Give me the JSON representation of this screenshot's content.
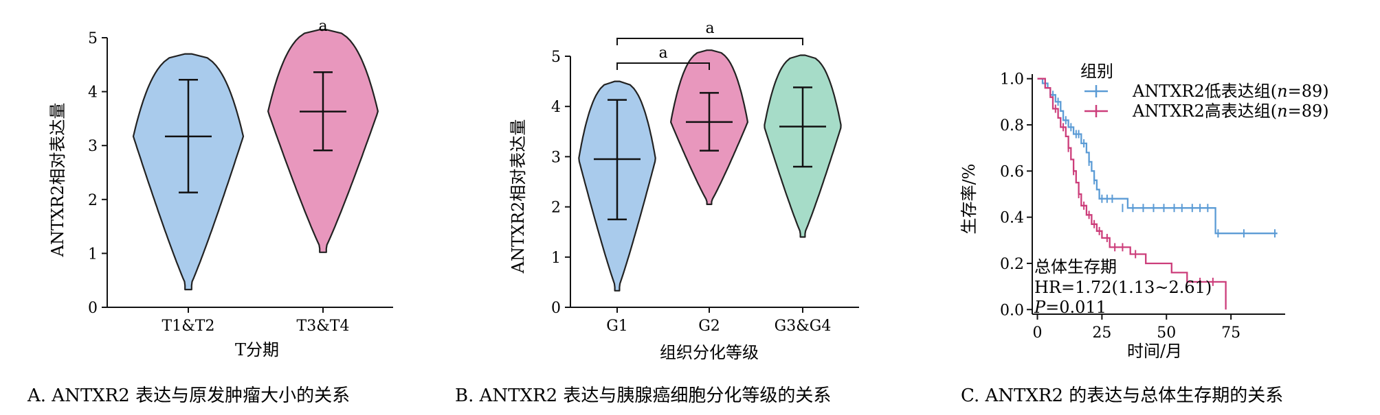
{
  "chart_data": [
    {
      "type": "violin",
      "ylabel": "ANTXR2相对表达量",
      "xlabel": "T分期",
      "ylim": [
        0,
        5
      ],
      "yticks": [
        0,
        1,
        2,
        3,
        4,
        5
      ],
      "categories": [
        "T1&T2",
        "T3&T4"
      ],
      "colors": [
        "#a9cbec",
        "#e897bd"
      ],
      "stats": [
        {
          "category": "T1&T2",
          "min": 0.33,
          "max": 4.7,
          "median": 3.17,
          "q1": 2.13,
          "q3": 4.22
        },
        {
          "category": "T3&T4",
          "min": 1.02,
          "max": 5.15,
          "median": 3.63,
          "q1": 2.91,
          "q3": 4.36
        }
      ],
      "significance": [
        {
          "group": "T3&T4",
          "label": "a"
        }
      ],
      "caption": "A. ANTXR2 表达与原发肿瘤大小的关系"
    },
    {
      "type": "violin",
      "ylabel": "ANTXR2相对表达量",
      "xlabel": "组织分化等级",
      "ylim": [
        0,
        5
      ],
      "yticks": [
        0,
        1,
        2,
        3,
        4,
        5
      ],
      "categories": [
        "G1",
        "G2",
        "G3&G4"
      ],
      "colors": [
        "#a9cbec",
        "#e897bd",
        "#a6dcc8"
      ],
      "stats": [
        {
          "category": "G1",
          "min": 0.33,
          "max": 4.5,
          "median": 2.95,
          "q1": 1.75,
          "q3": 4.13
        },
        {
          "category": "G2",
          "min": 2.05,
          "max": 5.12,
          "median": 3.69,
          "q1": 3.12,
          "q3": 4.27
        },
        {
          "category": "G3&G4",
          "min": 1.4,
          "max": 5.02,
          "median": 3.6,
          "q1": 2.8,
          "q3": 4.38
        }
      ],
      "significance": [
        {
          "from": "G1",
          "to": "G2",
          "label": "a"
        },
        {
          "from": "G1",
          "to": "G3&G4",
          "label": "a"
        }
      ],
      "caption": "B. ANTXR2 表达与胰腺癌细胞分化等级的关系"
    },
    {
      "type": "line",
      "subtype": "kaplan-meier",
      "xlabel": "时间/月",
      "ylabel": "生存率/%",
      "xlim": [
        -2,
        96
      ],
      "ylim": [
        -0.02,
        1.02
      ],
      "xticks": [
        0,
        25,
        50,
        75
      ],
      "yticks": [
        0.0,
        0.2,
        0.4,
        0.6,
        0.8,
        1.0
      ],
      "legend_title": "组别",
      "series": [
        {
          "name": "ANTXR2低表达组(n=89)",
          "name_prefix": "ANTXR2低表达组(",
          "name_italic": "n",
          "name_suffix": "=89)",
          "color": "#5b9bd5",
          "steps": [
            [
              0,
              1.0
            ],
            [
              2,
              0.98
            ],
            [
              4,
              0.96
            ],
            [
              5,
              0.93
            ],
            [
              7,
              0.9
            ],
            [
              9,
              0.86
            ],
            [
              10,
              0.82
            ],
            [
              12,
              0.79
            ],
            [
              14,
              0.76
            ],
            [
              17,
              0.72
            ],
            [
              19,
              0.68
            ],
            [
              20,
              0.64
            ],
            [
              21,
              0.6
            ],
            [
              22,
              0.56
            ],
            [
              23,
              0.52
            ],
            [
              24,
              0.48
            ],
            [
              30,
              0.48
            ],
            [
              35,
              0.44
            ],
            [
              68,
              0.44
            ],
            [
              69,
              0.33
            ],
            [
              93,
              0.33
            ]
          ],
          "censors": [
            [
              3,
              0.98
            ],
            [
              6,
              0.93
            ],
            [
              8,
              0.9
            ],
            [
              11,
              0.82
            ],
            [
              13,
              0.79
            ],
            [
              15,
              0.76
            ],
            [
              16,
              0.76
            ],
            [
              18,
              0.72
            ],
            [
              20,
              0.64
            ],
            [
              22,
              0.56
            ],
            [
              25,
              0.48
            ],
            [
              27,
              0.48
            ],
            [
              29,
              0.48
            ],
            [
              33,
              0.44
            ],
            [
              37,
              0.44
            ],
            [
              41,
              0.44
            ],
            [
              45,
              0.44
            ],
            [
              49,
              0.44
            ],
            [
              53,
              0.44
            ],
            [
              56,
              0.44
            ],
            [
              60,
              0.44
            ],
            [
              63,
              0.44
            ],
            [
              66,
              0.44
            ],
            [
              70,
              0.33
            ],
            [
              80,
              0.33
            ],
            [
              92,
              0.33
            ]
          ]
        },
        {
          "name": "ANTXR2高表达组(n=89)",
          "name_prefix": "ANTXR2高表达组(",
          "name_italic": "n",
          "name_suffix": "=89)",
          "color": "#cc3d7a",
          "steps": [
            [
              0,
              1.0
            ],
            [
              3,
              0.96
            ],
            [
              5,
              0.92
            ],
            [
              6,
              0.87
            ],
            [
              8,
              0.83
            ],
            [
              9,
              0.79
            ],
            [
              11,
              0.75
            ],
            [
              12,
              0.7
            ],
            [
              13,
              0.65
            ],
            [
              14,
              0.6
            ],
            [
              15,
              0.55
            ],
            [
              16,
              0.5
            ],
            [
              17,
              0.45
            ],
            [
              19,
              0.41
            ],
            [
              21,
              0.37
            ],
            [
              23,
              0.34
            ],
            [
              25,
              0.31
            ],
            [
              28,
              0.27
            ],
            [
              36,
              0.24
            ],
            [
              42,
              0.2
            ],
            [
              52,
              0.16
            ],
            [
              58,
              0.12
            ],
            [
              73,
              0.0
            ]
          ],
          "censors": [
            [
              7,
              0.87
            ],
            [
              10,
              0.79
            ],
            [
              12,
              0.7
            ],
            [
              14,
              0.6
            ],
            [
              16,
              0.5
            ],
            [
              18,
              0.45
            ],
            [
              20,
              0.41
            ],
            [
              22,
              0.37
            ],
            [
              24,
              0.34
            ],
            [
              27,
              0.31
            ],
            [
              30,
              0.27
            ],
            [
              33,
              0.27
            ],
            [
              38,
              0.24
            ],
            [
              63,
              0.12
            ],
            [
              68,
              0.12
            ]
          ]
        }
      ],
      "annotation": {
        "title": "总体生存期",
        "hr": "HR=1.72(1.13~2.61)",
        "p_italic": "P",
        "p_value": "=0.011"
      },
      "caption": "C. ANTXR2 的表达与总体生存期的关系"
    }
  ]
}
